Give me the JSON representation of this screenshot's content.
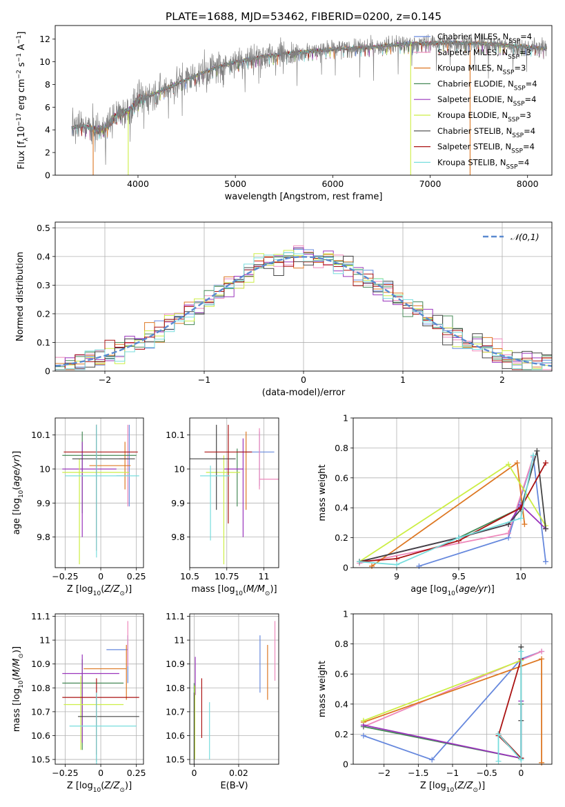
{
  "figure_title": "PLATE=1688, MJD=53462, FIBERID=0200, z=0.145",
  "colors": {
    "Chabrier MILES": "#6688dd",
    "Salpeter MILES": "#ee88bb",
    "Kroupa MILES": "#dd7722",
    "Chabrier ELODIE": "#448855",
    "Salpeter ELODIE": "#9933bb",
    "Kroupa ELODIE": "#ccee44",
    "Chabrier STELIB": "#444444",
    "Salpeter STELIB": "#aa1111",
    "Kroupa STELIB": "#77dddd",
    "data": "#808080",
    "normal": "#5a8ad0",
    "grid": "#b0b0b0"
  },
  "chart_data": [
    {
      "id": "spectrum",
      "type": "line",
      "title": "PLATE=1688, MJD=53462, FIBERID=0200, z=0.145",
      "xlabel": "wavelength [Angstrom, rest frame]",
      "ylabel": "Flux [f_λ 10^-17 erg cm^-2 s^-1 A^-1]",
      "xlim": [
        3150,
        8250
      ],
      "ylim": [
        0,
        13.2
      ],
      "xticks": [
        4000,
        5000,
        6000,
        7000,
        8000
      ],
      "yticks": [
        0,
        2,
        4,
        6,
        8,
        10,
        12
      ],
      "grid": false,
      "legend_position": "top-right",
      "legend": [
        {
          "name": "Chabrier MILES",
          "n_ssp": "4"
        },
        {
          "name": "Salpeter MILES",
          "n_ssp": "3"
        },
        {
          "name": "Kroupa MILES",
          "n_ssp": "3"
        },
        {
          "name": "Chabrier ELODIE",
          "n_ssp": "4"
        },
        {
          "name": "Salpeter ELODIE",
          "n_ssp": "4"
        },
        {
          "name": "Kroupa ELODIE",
          "n_ssp": "3"
        },
        {
          "name": "Chabrier STELIB",
          "n_ssp": "4"
        },
        {
          "name": "Salpeter STELIB",
          "n_ssp": "4"
        },
        {
          "name": "Kroupa STELIB",
          "n_ssp": "4"
        }
      ],
      "data_range": [
        3320,
        8200
      ],
      "continuum": [
        [
          3320,
          4.2
        ],
        [
          3450,
          4.4
        ],
        [
          3550,
          4.0
        ],
        [
          3650,
          4.1
        ],
        [
          3800,
          5.5
        ],
        [
          3900,
          5.6
        ],
        [
          4000,
          6.6
        ],
        [
          4200,
          7.3
        ],
        [
          4400,
          8.1
        ],
        [
          4600,
          8.8
        ],
        [
          4800,
          9.5
        ],
        [
          5000,
          10.0
        ],
        [
          5300,
          10.5
        ],
        [
          5600,
          10.8
        ],
        [
          6000,
          11.1
        ],
        [
          6400,
          11.3
        ],
        [
          6800,
          11.6
        ],
        [
          7200,
          11.7
        ],
        [
          7600,
          11.6
        ],
        [
          8000,
          11.3
        ],
        [
          8200,
          11.2
        ]
      ],
      "model_cutoffs": [
        {
          "series": "Kroupa MILES",
          "range": [
            3540,
            7410
          ]
        },
        {
          "series": "Kroupa ELODIE",
          "range": [
            3900,
            6800
          ]
        }
      ]
    },
    {
      "id": "residuals",
      "type": "bar",
      "xlabel": "(data-model)/error",
      "ylabel": "Normed distribution",
      "xlim": [
        -2.5,
        2.5
      ],
      "ylim": [
        0,
        0.52
      ],
      "xticks": [
        -2,
        -1,
        0,
        1,
        2
      ],
      "yticks": [
        0.0,
        0.1,
        0.2,
        0.3,
        0.4,
        0.5
      ],
      "grid": true,
      "legend_position": "top-right",
      "legend": [
        "𝒩(0,1)"
      ],
      "bin_width": 0.1,
      "bin_range": [
        -2.5,
        2.5
      ],
      "reference_curve": "standard normal"
    },
    {
      "id": "age_vs_Z",
      "type": "scatter",
      "xlabel": "Z [log10(Z/Z☉)]",
      "ylabel": "age  [log10(age/yr)]",
      "xlim": [
        -0.32,
        0.3
      ],
      "ylim": [
        9.71,
        10.15
      ],
      "xticks": [
        -0.25,
        0.0,
        0.25
      ],
      "yticks": [
        9.8,
        9.9,
        10.0,
        10.1
      ],
      "grid": true,
      "points": [
        {
          "series": "Chabrier MILES",
          "x": 0.2,
          "xerr": [
            0.09,
            0.0
          ],
          "y": 9.98,
          "yerr": [
            0.09,
            0.15
          ]
        },
        {
          "series": "Salpeter MILES",
          "x": 0.19,
          "xerr": [
            0.06,
            0.0
          ],
          "y": 10.03,
          "yerr": [
            0.14,
            0.1
          ]
        },
        {
          "series": "Kroupa MILES",
          "x": 0.17,
          "xerr": [
            0.25,
            0.04
          ],
          "y": 10.01,
          "yerr": [
            0.07,
            0.07
          ]
        },
        {
          "series": "Chabrier ELODIE",
          "x": -0.13,
          "xerr": [
            0.14,
            0.38
          ],
          "y": 10.04,
          "yerr": [
            0.17,
            0.07
          ]
        },
        {
          "series": "Salpeter ELODIE",
          "x": -0.13,
          "xerr": [
            0.14,
            0.24
          ],
          "y": 10.0,
          "yerr": [
            0.2,
            0.08
          ]
        },
        {
          "series": "Kroupa ELODIE",
          "x": -0.15,
          "xerr": [
            0.12,
            0.35
          ],
          "y": 9.99,
          "yerr": [
            0.27,
            0.04
          ]
        },
        {
          "series": "Chabrier STELIB",
          "x": -0.03,
          "xerr": [
            0.17,
            0.27
          ],
          "y": 10.03,
          "yerr": [
            0.23,
            0.1
          ]
        },
        {
          "series": "Salpeter STELIB",
          "x": -0.03,
          "xerr": [
            0.23,
            0.29
          ],
          "y": 10.05,
          "yerr": [
            0.29,
            0.08
          ]
        },
        {
          "series": "Kroupa STELIB",
          "x": -0.03,
          "xerr": [
            0.22,
            0.3
          ],
          "y": 9.98,
          "yerr": [
            0.24,
            0.15
          ]
        }
      ]
    },
    {
      "id": "age_vs_mass",
      "type": "scatter",
      "xlabel": "mass [log10(M/M☉)]",
      "ylabel": "",
      "xlim": [
        10.5,
        11.1
      ],
      "ylim": [
        9.71,
        10.15
      ],
      "xticks": [
        10.5,
        10.75,
        11.0
      ],
      "yticks": [
        9.8,
        9.9,
        10.0,
        10.1
      ],
      "grid": true,
      "points": [
        {
          "series": "Chabrier MILES",
          "x": 10.97,
          "xerr": [
            0.14,
            0.1
          ],
          "y": 10.05,
          "yerr": [
            0.1,
            0.06
          ]
        },
        {
          "series": "Salpeter MILES",
          "x": 10.97,
          "xerr": [
            0.0,
            0.13
          ],
          "y": 9.97,
          "yerr": [
            0.03,
            0.15
          ]
        },
        {
          "series": "Kroupa MILES",
          "x": 10.88,
          "xerr": [
            0.0,
            0.0
          ],
          "y": 10.01,
          "yerr": [
            0.13,
            0.1
          ]
        },
        {
          "series": "Chabrier ELODIE",
          "x": 10.82,
          "xerr": [
            0.0,
            0.0
          ],
          "y": 10.0,
          "yerr": [
            0.11,
            0.06
          ]
        },
        {
          "series": "Salpeter ELODIE",
          "x": 10.86,
          "xerr": [
            0.13,
            0.0
          ],
          "y": 10.0,
          "yerr": [
            0.2,
            0.09
          ]
        },
        {
          "series": "Kroupa ELODIE",
          "x": 10.73,
          "xerr": [
            0.12,
            0.11
          ],
          "y": 9.99,
          "yerr": [
            0.27,
            0.05
          ]
        },
        {
          "series": "Chabrier STELIB",
          "x": 10.68,
          "xerr": [
            0.19,
            0.13
          ],
          "y": 10.03,
          "yerr": [
            0.15,
            0.1
          ]
        },
        {
          "series": "Salpeter STELIB",
          "x": 10.76,
          "xerr": [
            0.16,
            0.16
          ],
          "y": 10.05,
          "yerr": [
            0.21,
            0.08
          ]
        },
        {
          "series": "Kroupa STELIB",
          "x": 10.64,
          "xerr": [
            0.07,
            0.13
          ],
          "y": 9.98,
          "yerr": [
            0.19,
            0.03
          ]
        }
      ]
    },
    {
      "id": "mass_weight_vs_age",
      "type": "line",
      "xlabel": "age  [log10(age/yr)]",
      "ylabel": "mass weight",
      "xlim": [
        8.65,
        10.25
      ],
      "ylim": [
        0.0,
        1.0
      ],
      "xticks": [
        9.0,
        9.5,
        10.0
      ],
      "yticks": [
        0.0,
        0.2,
        0.4,
        0.6,
        0.8,
        1.0
      ],
      "grid": true,
      "series": [
        {
          "name": "Chabrier MILES",
          "x": [
            9.18,
            9.9,
            10.1,
            10.2
          ],
          "y": [
            0.01,
            0.2,
            0.74,
            0.04
          ]
        },
        {
          "name": "Salpeter MILES",
          "x": [
            8.7,
            9.9,
            10.1
          ],
          "y": [
            0.03,
            0.23,
            0.74
          ]
        },
        {
          "name": "Kroupa MILES",
          "x": [
            8.8,
            9.97,
            10.03
          ],
          "y": [
            0.01,
            0.7,
            0.29
          ]
        },
        {
          "name": "Chabrier ELODIE",
          "x": [
            8.7,
            9.5,
            10.0
          ],
          "y": [
            0.04,
            0.2,
            0.4
          ]
        },
        {
          "name": "Salpeter ELODIE",
          "x": [
            8.7,
            9.5,
            9.9,
            10.0,
            10.2
          ],
          "y": [
            0.04,
            0.2,
            0.29,
            0.42,
            0.26
          ]
        },
        {
          "name": "Kroupa ELODIE",
          "x": [
            8.7,
            9.9,
            10.2
          ],
          "y": [
            0.04,
            0.69,
            0.28
          ]
        },
        {
          "name": "Chabrier STELIB",
          "x": [
            8.7,
            9.5,
            9.9,
            10.0,
            10.13,
            10.2
          ],
          "y": [
            0.04,
            0.2,
            0.29,
            0.39,
            0.78,
            0.26
          ]
        },
        {
          "name": "Salpeter STELIB",
          "x": [
            8.7,
            9.0,
            9.5,
            10.0,
            10.2
          ],
          "y": [
            0.04,
            0.06,
            0.18,
            0.4,
            0.7
          ]
        },
        {
          "name": "Kroupa STELIB",
          "x": [
            8.7,
            9.0,
            9.5,
            10.0,
            10.1
          ],
          "y": [
            0.04,
            0.02,
            0.2,
            0.33,
            0.75
          ]
        }
      ]
    },
    {
      "id": "mass_vs_Z",
      "type": "scatter",
      "xlabel": "Z [log10(Z/Z☉)]",
      "ylabel": "mass [log10(M/M☉)]",
      "xlim": [
        -0.32,
        0.3
      ],
      "ylim": [
        10.48,
        11.11
      ],
      "xticks": [
        -0.25,
        0.0,
        0.25
      ],
      "yticks": [
        10.5,
        10.6,
        10.7,
        10.8,
        10.9,
        11.0,
        11.1
      ],
      "grid": true,
      "points": [
        {
          "series": "Chabrier MILES",
          "x": 0.19,
          "xerr": [
            0.15,
            0.0
          ],
          "y": 10.96,
          "yerr": [
            0.14,
            0.06
          ]
        },
        {
          "series": "Salpeter MILES",
          "x": 0.19,
          "xerr": [
            0.0,
            0.0
          ],
          "y": 10.96,
          "yerr": [
            0.07,
            0.12
          ]
        },
        {
          "series": "Kroupa MILES",
          "x": 0.18,
          "xerr": [
            0.3,
            0.0
          ],
          "y": 10.88,
          "yerr": [
            0.13,
            0.1
          ]
        },
        {
          "series": "Chabrier ELODIE",
          "x": -0.13,
          "xerr": [
            0.14,
            0.29
          ],
          "y": 10.82,
          "yerr": [
            0.28,
            0.1
          ]
        },
        {
          "series": "Salpeter ELODIE",
          "x": -0.13,
          "xerr": [
            0.14,
            0.26
          ],
          "y": 10.86,
          "yerr": [
            0.29,
            0.08
          ]
        },
        {
          "series": "Kroupa ELODIE",
          "x": -0.14,
          "xerr": [
            0.12,
            0.3
          ],
          "y": 10.73,
          "yerr": [
            0.19,
            0.12
          ]
        },
        {
          "series": "Chabrier STELIB",
          "x": -0.03,
          "xerr": [
            0.13,
            0.3
          ],
          "y": 10.68,
          "yerr": [
            0.19,
            0.09
          ]
        },
        {
          "series": "Salpeter STELIB",
          "x": -0.03,
          "xerr": [
            0.24,
            0.3
          ],
          "y": 10.76,
          "yerr": [
            0.24,
            0.08
          ]
        },
        {
          "series": "Kroupa STELIB",
          "x": -0.03,
          "xerr": [
            0.19,
            0.28
          ],
          "y": 10.64,
          "yerr": [
            0.16,
            0.14
          ]
        }
      ]
    },
    {
      "id": "mass_vs_ebv",
      "type": "scatter",
      "xlabel": "E(B-V)",
      "ylabel": "",
      "xlim": [
        -0.002,
        0.038
      ],
      "ylim": [
        10.48,
        11.11
      ],
      "xticks": [
        0.0,
        0.02
      ],
      "yticks": [
        10.5,
        10.6,
        10.7,
        10.8,
        10.9,
        11.0,
        11.1
      ],
      "grid": true,
      "points": [
        {
          "series": "Chabrier MILES",
          "x": 0.0296,
          "y": 10.9,
          "yerr": [
            0.12,
            0.12
          ]
        },
        {
          "series": "Salpeter MILES",
          "x": 0.0363,
          "y": 10.96,
          "yerr": [
            0.13,
            0.12
          ]
        },
        {
          "series": "Kroupa MILES",
          "x": 0.033,
          "y": 10.87,
          "yerr": [
            0.12,
            0.11
          ]
        },
        {
          "series": "Chabrier ELODIE",
          "x": 0.0,
          "y": 10.66,
          "yerr": [
            0.16,
            0.16
          ]
        },
        {
          "series": "Salpeter ELODIE",
          "x": 0.0005,
          "y": 10.86,
          "yerr": [
            0.09,
            0.07
          ]
        },
        {
          "series": "Kroupa ELODIE",
          "x": 0.0003,
          "y": 10.72,
          "yerr": [
            0.22,
            0.09
          ]
        },
        {
          "series": "Chabrier STELIB",
          "x": 0.0,
          "y": 10.68,
          "yerr": [
            0.2,
            0.1
          ]
        },
        {
          "series": "Salpeter STELIB",
          "x": 0.0034,
          "y": 10.71,
          "yerr": [
            0.12,
            0.13
          ]
        },
        {
          "series": "Kroupa STELIB",
          "x": 0.0069,
          "y": 10.6,
          "yerr": [
            0.1,
            0.14
          ]
        }
      ]
    },
    {
      "id": "mass_weight_vs_Z",
      "type": "line",
      "xlabel": "Z [log10(Z/Z☉)]",
      "ylabel": "mass weight",
      "xlim": [
        -2.45,
        0.45
      ],
      "ylim": [
        0.0,
        1.0
      ],
      "xticks": [
        -2.0,
        -1.5,
        -1.0,
        -0.5,
        0.0
      ],
      "yticks": [
        0.0,
        0.2,
        0.4,
        0.6,
        0.8,
        1.0
      ],
      "grid": true,
      "series": [
        {
          "name": "Chabrier MILES",
          "x": [
            -2.3,
            -1.3,
            0.0,
            0.3
          ],
          "y": [
            0.19,
            0.03,
            0.7,
            0.75
          ]
        },
        {
          "name": "Salpeter MILES",
          "x": [
            -2.3,
            0.3
          ],
          "y": [
            0.25,
            0.75
          ]
        },
        {
          "name": "Kroupa MILES",
          "x": [
            -2.3,
            0.3,
            0.3
          ],
          "y": [
            0.28,
            0.7,
            0.01
          ]
        },
        {
          "name": "Chabrier ELODIE",
          "x": [
            -2.3,
            0.0,
            0.0
          ],
          "y": [
            0.25,
            0.04,
            0.4
          ]
        },
        {
          "name": "Salpeter ELODIE",
          "x": [
            -2.3,
            0.0,
            0.0
          ],
          "y": [
            0.26,
            0.04,
            0.42
          ]
        },
        {
          "name": "Kroupa ELODIE",
          "x": [
            -2.3,
            0.0
          ],
          "y": [
            0.29,
            0.69
          ]
        },
        {
          "name": "Chabrier STELIB",
          "x": [
            -0.33,
            0.0,
            0.0,
            0.0
          ],
          "y": [
            0.2,
            0.04,
            0.29,
            0.78
          ]
        },
        {
          "name": "Salpeter STELIB",
          "x": [
            -0.33,
            0.0,
            -0.33,
            0.0
          ],
          "y": [
            0.2,
            0.04,
            0.19,
            0.7
          ]
        },
        {
          "name": "Kroupa STELIB",
          "x": [
            -0.33,
            -0.33,
            0.0,
            0.0
          ],
          "y": [
            0.02,
            0.2,
            0.03,
            0.75
          ]
        }
      ]
    }
  ]
}
